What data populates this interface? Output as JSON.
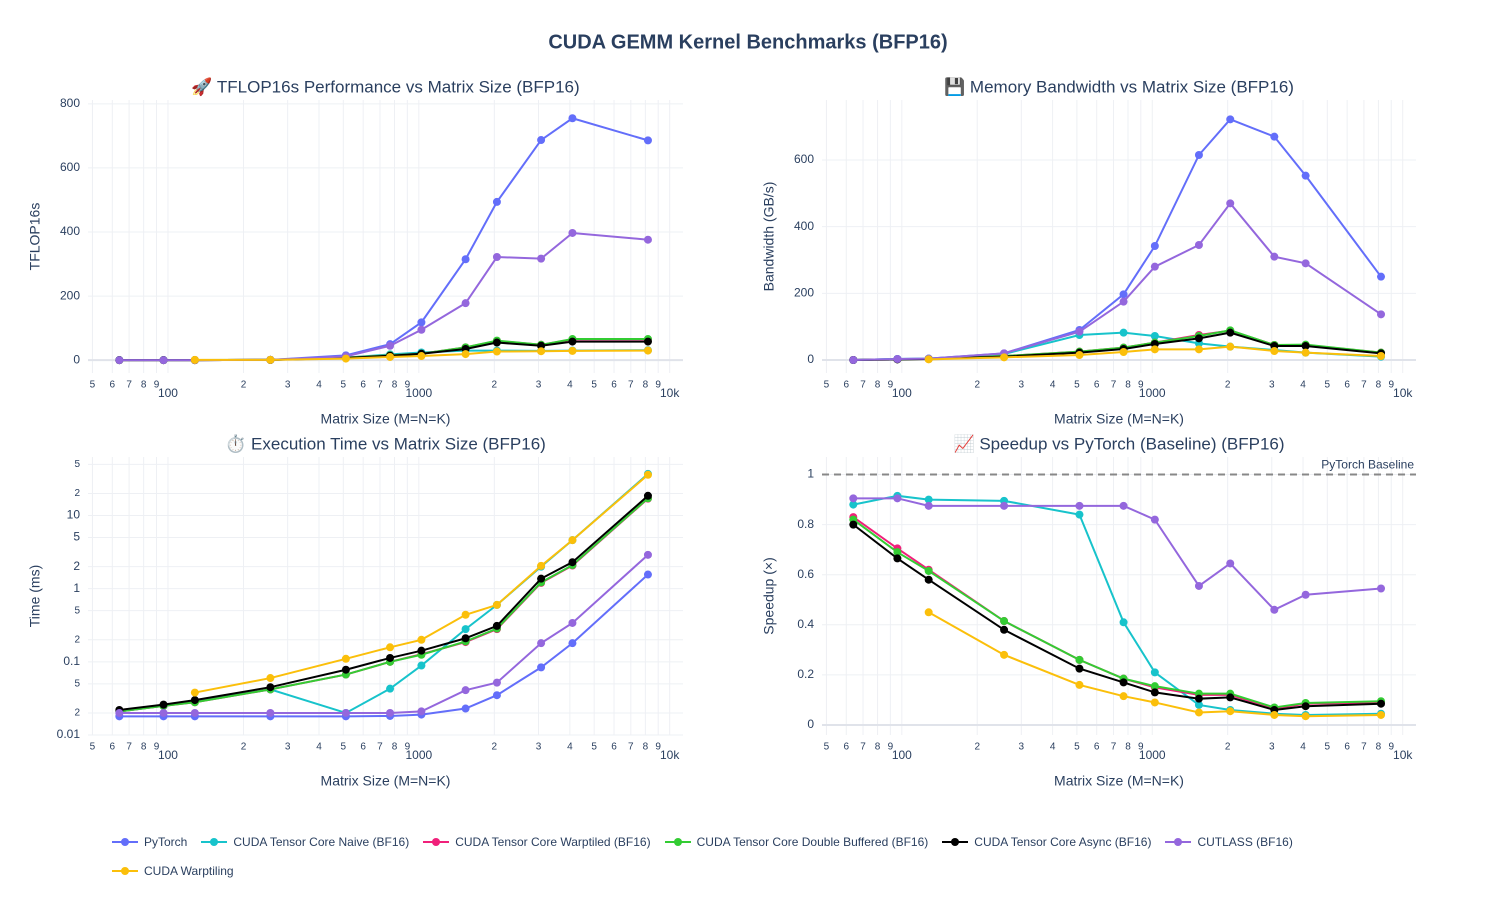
{
  "title": "CUDA GEMM Kernel Benchmarks (BFP16)",
  "chart_data": [
    {
      "type": "line",
      "title": "🚀 TFLOP16s Performance vs Matrix Size (BFP16)",
      "xlabel": "Matrix Size (M=N=K)",
      "ylabel": "TFLOP16s",
      "xscale": "log",
      "grid": true,
      "x": [
        64,
        96,
        128,
        256,
        512,
        768,
        1024,
        1536,
        2048,
        3072,
        4096,
        8192
      ],
      "xlim": [
        48,
        11300
      ],
      "xticks": [
        {
          "value": 50,
          "label": "5"
        },
        {
          "value": 60,
          "label": "6"
        },
        {
          "value": 70,
          "label": "7"
        },
        {
          "value": 80,
          "label": "8"
        },
        {
          "value": 90,
          "label": "9"
        },
        100,
        {
          "value": 200,
          "label": "2"
        },
        {
          "value": 300,
          "label": "3"
        },
        {
          "value": 400,
          "label": "4"
        },
        {
          "value": 500,
          "label": "5"
        },
        {
          "value": 600,
          "label": "6"
        },
        {
          "value": 700,
          "label": "7"
        },
        {
          "value": 800,
          "label": "8"
        },
        {
          "value": 900,
          "label": "9"
        },
        1000,
        {
          "value": 2000,
          "label": "2"
        },
        {
          "value": 3000,
          "label": "3"
        },
        {
          "value": 4000,
          "label": "4"
        },
        {
          "value": 5000,
          "label": "5"
        },
        {
          "value": 6000,
          "label": "6"
        },
        {
          "value": 7000,
          "label": "7"
        },
        {
          "value": 8000,
          "label": "8"
        },
        {
          "value": 9000,
          "label": "9"
        },
        {
          "value": 10000,
          "label": "10k"
        }
      ],
      "ylim": [
        -40,
        812
      ],
      "yticks": [
        0,
        200,
        400,
        600,
        800
      ],
      "series": [
        {
          "name": "PyTorch",
          "color": "#636efa",
          "values": [
            0,
            0,
            0,
            1,
            15,
            50,
            118,
            315,
            494,
            687,
            755,
            686
          ]
        },
        {
          "name": "CUDA Tensor Core Naive (BF16)",
          "color": "#17c3cb",
          "values": [
            0.5,
            0.5,
            0.5,
            1,
            8,
            18,
            24,
            30,
            30,
            29,
            30,
            31
          ]
        },
        {
          "name": "CUDA Tensor Core Warptiled (BF16)",
          "color": "#f0207a",
          "values": [
            0,
            0,
            0,
            1,
            8,
            15,
            20,
            40,
            60,
            48,
            65,
            65
          ]
        },
        {
          "name": "CUDA Tensor Core Double Buffered (BF16)",
          "color": "#33cc33",
          "values": [
            0,
            0,
            0,
            1,
            8,
            15,
            20,
            40,
            61,
            48,
            66,
            66
          ]
        },
        {
          "name": "CUDA Tensor Core Async (BF16)",
          "color": "#000000",
          "values": [
            0,
            0,
            0,
            1,
            7,
            14,
            20,
            35,
            55,
            45,
            58,
            58
          ]
        },
        {
          "name": "CUTLASS (BF16)",
          "color": "#9467dd",
          "values": [
            0,
            0,
            0,
            1,
            12,
            45,
            95,
            178,
            322,
            317,
            397,
            376
          ]
        },
        {
          "name": "CUDA Warptiling",
          "color": "#fbbf0a",
          "values": [
            null,
            null,
            1,
            1,
            5,
            10,
            13,
            19,
            27,
            28,
            29,
            30
          ]
        }
      ]
    },
    {
      "type": "line",
      "title": "💾 Memory Bandwidth vs Matrix Size (BFP16)",
      "xlabel": "Matrix Size (M=N=K)",
      "ylabel": "Bandwidth (GB/s)",
      "xscale": "log",
      "grid": true,
      "x": [
        64,
        96,
        128,
        256,
        512,
        768,
        1024,
        1536,
        2048,
        3072,
        4096,
        8192
      ],
      "xlim": [
        48,
        11300
      ],
      "xticks": [
        {
          "value": 50,
          "label": "5"
        },
        {
          "value": 60,
          "label": "6"
        },
        {
          "value": 70,
          "label": "7"
        },
        {
          "value": 80,
          "label": "8"
        },
        {
          "value": 90,
          "label": "9"
        },
        100,
        {
          "value": 200,
          "label": "2"
        },
        {
          "value": 300,
          "label": "3"
        },
        {
          "value": 400,
          "label": "4"
        },
        {
          "value": 500,
          "label": "5"
        },
        {
          "value": 600,
          "label": "6"
        },
        {
          "value": 700,
          "label": "7"
        },
        {
          "value": 800,
          "label": "8"
        },
        {
          "value": 900,
          "label": "9"
        },
        1000,
        {
          "value": 2000,
          "label": "2"
        },
        {
          "value": 3000,
          "label": "3"
        },
        {
          "value": 4000,
          "label": "4"
        },
        {
          "value": 5000,
          "label": "5"
        },
        {
          "value": 6000,
          "label": "6"
        },
        {
          "value": 7000,
          "label": "7"
        },
        {
          "value": 8000,
          "label": "8"
        },
        {
          "value": 9000,
          "label": "9"
        },
        {
          "value": 10000,
          "label": "10k"
        }
      ],
      "ylim": [
        -39,
        780
      ],
      "yticks": [
        0,
        200,
        400,
        600
      ],
      "series": [
        {
          "name": "PyTorch",
          "color": "#636efa",
          "values": [
            0,
            3,
            4,
            20,
            90,
            197,
            342,
            615,
            722,
            670,
            553,
            250
          ]
        },
        {
          "name": "CUDA Tensor Core Naive (BF16)",
          "color": "#17c3cb",
          "values": [
            0,
            3,
            4,
            18,
            75,
            82,
            72,
            50,
            40,
            30,
            22,
            10
          ]
        },
        {
          "name": "CUDA Tensor Core Warptiled (BF16)",
          "color": "#f0207a",
          "values": [
            0,
            2,
            3,
            12,
            25,
            37,
            52,
            75,
            88,
            45,
            45,
            22
          ]
        },
        {
          "name": "CUDA Tensor Core Double Buffered (BF16)",
          "color": "#33cc33",
          "values": [
            0,
            2,
            3,
            12,
            25,
            37,
            52,
            72,
            89,
            45,
            46,
            22
          ]
        },
        {
          "name": "CUDA Tensor Core Async (BF16)",
          "color": "#000000",
          "values": [
            0,
            2,
            3,
            10,
            22,
            33,
            48,
            65,
            82,
            42,
            42,
            20
          ]
        },
        {
          "name": "CUTLASS (BF16)",
          "color": "#9467dd",
          "values": [
            0,
            3,
            4,
            20,
            85,
            175,
            280,
            345,
            470,
            310,
            290,
            137
          ]
        },
        {
          "name": "CUDA Warptiling",
          "color": "#fbbf0a",
          "values": [
            null,
            null,
            2,
            8,
            15,
            24,
            32,
            32,
            40,
            27,
            22,
            12
          ]
        }
      ]
    },
    {
      "type": "line",
      "title": "⏱️ Execution Time vs Matrix Size (BFP16)",
      "xlabel": "Matrix Size (M=N=K)",
      "ylabel": "Time (ms)",
      "xscale": "log",
      "yscale": "log",
      "grid": true,
      "x": [
        64,
        96,
        128,
        256,
        512,
        768,
        1024,
        1536,
        2048,
        3072,
        4096,
        8192
      ],
      "xlim": [
        48,
        11300
      ],
      "xticks": [
        {
          "value": 50,
          "label": "5"
        },
        {
          "value": 60,
          "label": "6"
        },
        {
          "value": 70,
          "label": "7"
        },
        {
          "value": 80,
          "label": "8"
        },
        {
          "value": 90,
          "label": "9"
        },
        100,
        {
          "value": 200,
          "label": "2"
        },
        {
          "value": 300,
          "label": "3"
        },
        {
          "value": 400,
          "label": "4"
        },
        {
          "value": 500,
          "label": "5"
        },
        {
          "value": 600,
          "label": "6"
        },
        {
          "value": 700,
          "label": "7"
        },
        {
          "value": 800,
          "label": "8"
        },
        {
          "value": 900,
          "label": "9"
        },
        1000,
        {
          "value": 2000,
          "label": "2"
        },
        {
          "value": 3000,
          "label": "3"
        },
        {
          "value": 4000,
          "label": "4"
        },
        {
          "value": 5000,
          "label": "5"
        },
        {
          "value": 6000,
          "label": "6"
        },
        {
          "value": 7000,
          "label": "7"
        },
        {
          "value": 8000,
          "label": "8"
        },
        {
          "value": 9000,
          "label": "9"
        },
        {
          "value": 10000,
          "label": "10k"
        }
      ],
      "ylim": [
        0.01,
        63
      ],
      "yticks": [
        0.01,
        {
          "value": 0.02,
          "label": "2"
        },
        {
          "value": 0.05,
          "label": "5"
        },
        0.1,
        {
          "value": 0.2,
          "label": "2"
        },
        {
          "value": 0.5,
          "label": "5"
        },
        1,
        2,
        5,
        10,
        {
          "value": 20,
          "label": "2"
        },
        {
          "value": 50,
          "label": "5"
        }
      ],
      "series": [
        {
          "name": "PyTorch",
          "color": "#636efa",
          "values": [
            0.018,
            0.018,
            0.018,
            0.018,
            0.018,
            0.0182,
            0.019,
            0.023,
            0.035,
            0.084,
            0.18,
            1.56
          ]
        },
        {
          "name": "CUDA Tensor Core Naive (BF16)",
          "color": "#17c3cb",
          "values": [
            0.021,
            0.025,
            0.029,
            0.042,
            0.02,
            0.043,
            0.089,
            0.28,
            0.6,
            2.0,
            4.6,
            37
          ]
        },
        {
          "name": "CUDA Tensor Core Warptiled (BF16)",
          "color": "#f0207a",
          "values": [
            0.021,
            0.025,
            0.028,
            0.042,
            0.067,
            0.1,
            0.127,
            0.186,
            0.28,
            1.2,
            2.07,
            17
          ]
        },
        {
          "name": "CUDA Tensor Core Double Buffered (BF16)",
          "color": "#33cc33",
          "values": [
            0.021,
            0.025,
            0.028,
            0.042,
            0.067,
            0.1,
            0.125,
            0.19,
            0.285,
            1.22,
            2.1,
            17.2
          ]
        },
        {
          "name": "CUDA Tensor Core Async (BF16)",
          "color": "#000000",
          "values": [
            0.022,
            0.026,
            0.03,
            0.045,
            0.078,
            0.113,
            0.142,
            0.21,
            0.31,
            1.37,
            2.3,
            18.6
          ]
        },
        {
          "name": "CUTLASS (BF16)",
          "color": "#9467dd",
          "values": [
            0.02,
            0.02,
            0.02,
            0.02,
            0.02,
            0.02,
            0.021,
            0.041,
            0.052,
            0.18,
            0.34,
            2.9
          ]
        },
        {
          "name": "CUDA Warptiling",
          "color": "#fbbf0a",
          "values": [
            null,
            null,
            0.038,
            0.06,
            0.11,
            0.158,
            0.2,
            0.44,
            0.6,
            2.05,
            4.6,
            36
          ]
        }
      ]
    },
    {
      "type": "line",
      "title": "📈 Speedup vs PyTorch (Baseline) (BFP16)",
      "xlabel": "Matrix Size (M=N=K)",
      "ylabel": "Speedup (×)",
      "xscale": "log",
      "grid": true,
      "x": [
        64,
        96,
        128,
        256,
        512,
        768,
        1024,
        1536,
        2048,
        3072,
        4096,
        8192
      ],
      "xlim": [
        48,
        11300
      ],
      "xticks": [
        {
          "value": 50,
          "label": "5"
        },
        {
          "value": 60,
          "label": "6"
        },
        {
          "value": 70,
          "label": "7"
        },
        {
          "value": 80,
          "label": "8"
        },
        {
          "value": 90,
          "label": "9"
        },
        100,
        {
          "value": 200,
          "label": "2"
        },
        {
          "value": 300,
          "label": "3"
        },
        {
          "value": 400,
          "label": "4"
        },
        {
          "value": 500,
          "label": "5"
        },
        {
          "value": 600,
          "label": "6"
        },
        {
          "value": 700,
          "label": "7"
        },
        {
          "value": 800,
          "label": "8"
        },
        {
          "value": 900,
          "label": "9"
        },
        1000,
        {
          "value": 2000,
          "label": "2"
        },
        {
          "value": 3000,
          "label": "3"
        },
        {
          "value": 4000,
          "label": "4"
        },
        {
          "value": 5000,
          "label": "5"
        },
        {
          "value": 6000,
          "label": "6"
        },
        {
          "value": 7000,
          "label": "7"
        },
        {
          "value": 8000,
          "label": "8"
        },
        {
          "value": 9000,
          "label": "9"
        },
        {
          "value": 10000,
          "label": "10k"
        }
      ],
      "ylim": [
        -0.04,
        1.07
      ],
      "yticks": [
        0,
        0.2,
        0.4,
        0.6,
        0.8,
        1
      ],
      "reference_line": {
        "value": 1,
        "label": "PyTorch Baseline"
      },
      "series": [
        {
          "name": "CUDA Tensor Core Naive (BF16)",
          "color": "#17c3cb",
          "values": [
            0.88,
            0.915,
            0.9,
            0.895,
            0.84,
            0.41,
            0.21,
            0.08,
            0.06,
            0.045,
            0.04,
            0.045
          ]
        },
        {
          "name": "CUDA Tensor Core Warptiled (BF16)",
          "color": "#f0207a",
          "values": [
            0.83,
            0.705,
            0.62,
            0.415,
            0.26,
            0.185,
            0.15,
            0.12,
            0.12,
            0.065,
            0.085,
            0.09
          ]
        },
        {
          "name": "CUDA Tensor Core Double Buffered (BF16)",
          "color": "#33cc33",
          "values": [
            0.82,
            0.69,
            0.615,
            0.415,
            0.26,
            0.185,
            0.155,
            0.125,
            0.125,
            0.07,
            0.088,
            0.095
          ]
        },
        {
          "name": "CUDA Tensor Core Async (BF16)",
          "color": "#000000",
          "values": [
            0.8,
            0.665,
            0.58,
            0.38,
            0.225,
            0.17,
            0.13,
            0.105,
            0.11,
            0.06,
            0.075,
            0.085
          ]
        },
        {
          "name": "CUTLASS (BF16)",
          "color": "#9467dd",
          "values": [
            0.905,
            0.905,
            0.875,
            0.875,
            0.875,
            0.875,
            0.82,
            0.555,
            0.645,
            0.46,
            0.52,
            0.545
          ]
        },
        {
          "name": "CUDA Warptiling",
          "color": "#fbbf0a",
          "values": [
            null,
            null,
            0.45,
            0.28,
            0.16,
            0.115,
            0.09,
            0.05,
            0.055,
            0.04,
            0.035,
            0.04
          ]
        }
      ]
    }
  ]
}
